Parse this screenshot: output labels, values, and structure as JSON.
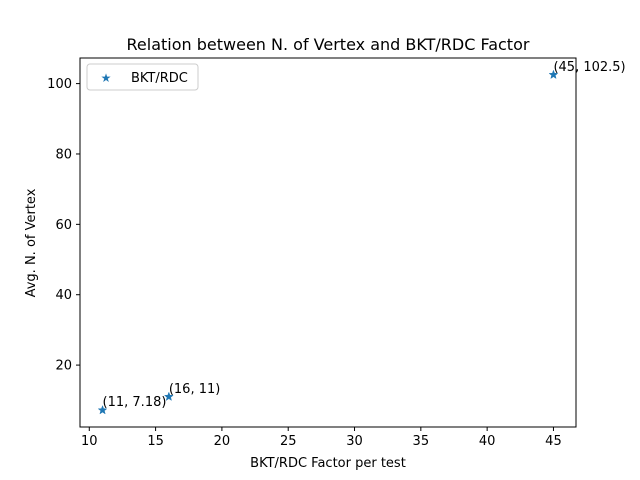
{
  "chart_data": {
    "type": "scatter",
    "title": "Relation between N. of Vertex and BKT/RDC Factor",
    "xlabel": "BKT/RDC Factor per test",
    "ylabel": "Avg. N. of Vertex",
    "xlim": [
      9.3,
      46.7
    ],
    "ylim": [
      2.405,
      107.275
    ],
    "xticks": [
      10,
      15,
      20,
      25,
      30,
      35,
      40,
      45
    ],
    "yticks": [
      20,
      40,
      60,
      80,
      100
    ],
    "grid": false,
    "legend_position": "top-left",
    "series": [
      {
        "name": "BKT/RDC",
        "marker": "star",
        "color": "#1f77b4",
        "points": [
          {
            "x": 11,
            "y": 7.18,
            "label": "(11, 7.18)"
          },
          {
            "x": 16,
            "y": 11,
            "label": "(16, 11)"
          },
          {
            "x": 45,
            "y": 102.5,
            "label": "(45, 102.5)"
          }
        ]
      }
    ]
  }
}
